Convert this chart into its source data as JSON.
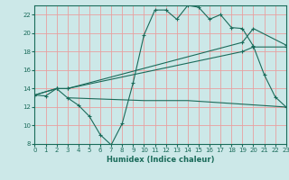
{
  "title": "",
  "xlabel": "Humidex (Indice chaleur)",
  "bg_color": "#cce8e8",
  "grid_color": "#e8a0a0",
  "line_color": "#1a6b5a",
  "xlim": [
    0,
    23
  ],
  "ylim": [
    8,
    23
  ],
  "xticks": [
    0,
    1,
    2,
    3,
    4,
    5,
    6,
    7,
    8,
    9,
    10,
    11,
    12,
    13,
    14,
    15,
    16,
    17,
    18,
    19,
    20,
    21,
    22,
    23
  ],
  "yticks": [
    8,
    10,
    12,
    14,
    16,
    18,
    20,
    22
  ],
  "line1_x": [
    0,
    1,
    2,
    3,
    4,
    5,
    6,
    7,
    8,
    9,
    10,
    11,
    12,
    13,
    14,
    15,
    16,
    17,
    18,
    19,
    20,
    21,
    22,
    23
  ],
  "line1_y": [
    13.3,
    13.2,
    14.0,
    13.0,
    12.2,
    11.0,
    9.0,
    7.9,
    10.2,
    14.6,
    19.8,
    22.5,
    22.5,
    21.5,
    23.0,
    22.8,
    21.5,
    22.0,
    20.6,
    20.5,
    18.6,
    15.5,
    13.1,
    12.0
  ],
  "line2_x": [
    0,
    2,
    3,
    19,
    20,
    23
  ],
  "line2_y": [
    13.3,
    14.0,
    14.0,
    19.0,
    20.5,
    18.7
  ],
  "line3_x": [
    0,
    2,
    3,
    19,
    20,
    23
  ],
  "line3_y": [
    13.3,
    14.0,
    14.0,
    18.0,
    18.5,
    18.5
  ],
  "line4_x": [
    3,
    10,
    14,
    23
  ],
  "line4_y": [
    13.0,
    12.7,
    12.7,
    12.0
  ]
}
